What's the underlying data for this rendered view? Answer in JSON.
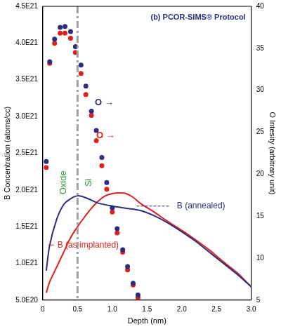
{
  "chart_data": {
    "type": "line",
    "title": "(b) PCOR-SIMS® Protocol",
    "x_label": "Depth (nm)",
    "y_label": "B Concentration (atoms/cc)",
    "y2_label": "O Intesity (arbitrary unit)",
    "xlim": [
      0,
      3
    ],
    "xticks": [
      0,
      0.5,
      {
        "value": 1,
        "label": "1.0"
      },
      1.5,
      {
        "value": 2,
        "label": "2.0"
      },
      2.5,
      {
        "value": 3,
        "label": "3.0"
      }
    ],
    "ylim": [
      5e+20,
      4.5e+21
    ],
    "yticks": [
      {
        "value": 5e+20,
        "label": "5.0E20"
      },
      {
        "value": 1e+21,
        "label": "1.0E21"
      },
      {
        "value": 1.5e+21,
        "label": "1.5E21"
      },
      {
        "value": 2e+21,
        "label": "2.0E21"
      },
      {
        "value": 2.5e+21,
        "label": "2.5E21"
      },
      {
        "value": 3e+21,
        "label": "3.0E21"
      },
      {
        "value": 3.5e+21,
        "label": "3.5E21"
      },
      {
        "value": 4e+21,
        "label": "4.0E21"
      },
      {
        "value": 4.5e+21,
        "label": "4.5E21"
      }
    ],
    "y2lim": [
      5,
      40
    ],
    "y2ticks": [
      5,
      10,
      15,
      20,
      25,
      30,
      35,
      40
    ],
    "grid": false,
    "vlines": [
      0.5
    ],
    "annotations": [
      {
        "text": "Oxide",
        "color": "#2e9b3c"
      },
      {
        "text": "Si",
        "color": "#2e9b3c"
      }
    ],
    "series": [
      {
        "name": "B (annealed)",
        "color": "#2b2d7f",
        "type": "line",
        "line_style": "solid",
        "x": [
          0.05,
          0.1,
          0.2,
          0.3,
          0.4,
          0.5,
          0.6,
          0.7,
          0.8,
          1.0,
          1.2,
          1.4,
          1.6,
          1.8,
          2.0,
          2.2,
          2.4,
          2.6,
          2.8,
          3.0
        ],
        "values": [
          9e+20,
          1.25e+21,
          1.6e+21,
          1.8e+21,
          1.88e+21,
          1.92e+21,
          1.9e+21,
          1.86e+21,
          1.82e+21,
          1.78e+21,
          1.75e+21,
          1.72e+21,
          1.65e+21,
          1.55e+21,
          1.43e+21,
          1.3e+21,
          1.15e+21,
          1e+21,
          8.5e+20,
          6.8e+20
        ]
      },
      {
        "name": "B (as implanted)",
        "color": "#e0201b",
        "type": "line",
        "line_style": "solid",
        "x": [
          0.05,
          0.1,
          0.2,
          0.3,
          0.4,
          0.5,
          0.6,
          0.7,
          0.8,
          0.9,
          1.0,
          1.1,
          1.2,
          1.3,
          1.4,
          1.6,
          1.8,
          2.0,
          2.2,
          2.4,
          2.6,
          2.8,
          3.0
        ],
        "values": [
          6e+20,
          7.5e+20,
          9.5e+20,
          1.15e+21,
          1.35e+21,
          1.5e+21,
          1.63e+21,
          1.75e+21,
          1.85e+21,
          1.92e+21,
          1.95e+21,
          1.96e+21,
          1.95e+21,
          1.9e+21,
          1.82e+21,
          1.7e+21,
          1.57e+21,
          1.45e+21,
          1.32e+21,
          1.18e+21,
          1.02e+21,
          8.7e+20,
          6.8e+20
        ]
      },
      {
        "name": "O →",
        "color": "#2b2d7f",
        "type": "scatter",
        "marker": "circle",
        "axis": "y2",
        "x": [
          0.05,
          0.1,
          0.17,
          0.25,
          0.32,
          0.4,
          0.47,
          0.55,
          0.62,
          0.7,
          0.77,
          0.85,
          0.92,
          1.0,
          1.07,
          1.15,
          1.22,
          1.3,
          1.37
        ],
        "values": [
          21.5,
          33.4,
          36.1,
          37.5,
          37.6,
          37.0,
          35.2,
          33.0,
          30.5,
          27.5,
          25.2,
          22.0,
          19.0,
          16.0,
          13.5,
          11.0,
          9.0,
          7.0,
          5.6
        ]
      },
      {
        "name": "O →",
        "color": "#e0201b",
        "type": "scatter",
        "marker": "circle",
        "axis": "y2",
        "x": [
          0.05,
          0.1,
          0.17,
          0.25,
          0.32,
          0.4,
          0.47,
          0.55,
          0.62,
          0.7,
          0.77,
          0.85,
          0.92,
          1.0,
          1.07,
          1.15,
          1.22,
          1.3,
          1.37
        ],
        "values": [
          20.8,
          33.2,
          35.6,
          36.8,
          36.8,
          36.2,
          34.5,
          32.0,
          29.5,
          27.0,
          24.0,
          21.0,
          18.2,
          15.5,
          13.0,
          10.7,
          8.6,
          6.8,
          5.3
        ]
      }
    ]
  }
}
